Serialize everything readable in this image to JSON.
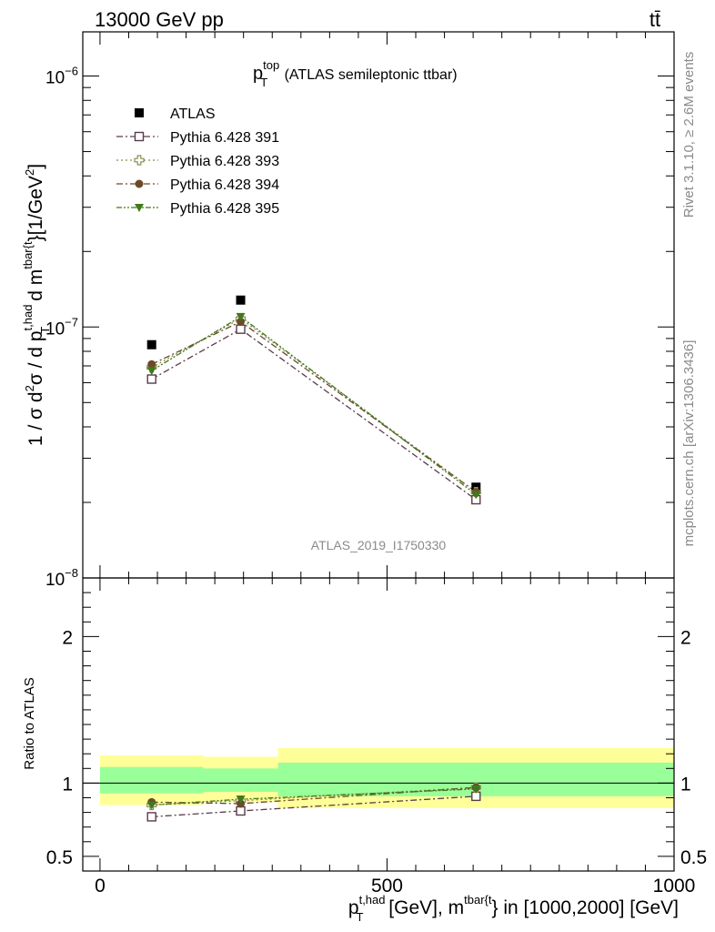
{
  "header": {
    "left_label": "13000 GeV pp",
    "right_label": "tt̄"
  },
  "side_labels": {
    "rivet": "Rivet 3.1.10, ≥ 2.6M events",
    "mcplots": "mcplots.cern.ch [arXiv:1306.3436]"
  },
  "chart_data": [
    {
      "type": "scatter",
      "panel": "main",
      "title": {
        "base": "p",
        "sup": "top",
        "sub": "T",
        "suffix": " (ATLAS semileptonic ttbar)"
      },
      "watermark": "ATLAS_2019_I1750330",
      "ylabel": "1 / σ d²σ / d p_T^{t,had} d m^{tbar{t}} [1/GeV²]",
      "yscale": "log",
      "ylim": [
        1e-08,
        1.5e-06
      ],
      "xlim": [
        -30,
        1000
      ],
      "ytick_labels": [
        {
          "value": 1e-08,
          "base": "10",
          "exp": "−8"
        },
        {
          "value": 1e-07,
          "base": "10",
          "exp": "−7"
        },
        {
          "value": 1e-06,
          "base": "10",
          "exp": "−6"
        }
      ],
      "legend_position": "top-left",
      "x": [
        90,
        245,
        655
      ],
      "series": [
        {
          "name": "ATLAS",
          "values": [
            8.5e-08,
            1.28e-07,
            2.3e-08
          ],
          "color": "#000000",
          "marker": "filled-square",
          "line": "none"
        },
        {
          "name": "Pythia 6.428 391",
          "values": [
            6.2e-08,
            9.8e-08,
            2.05e-08
          ],
          "color": "#5a3a4a",
          "marker": "open-square",
          "line": "dash-dot"
        },
        {
          "name": "Pythia 6.428 393",
          "values": [
            6.9e-08,
            1.08e-07,
            2.2e-08
          ],
          "color": "#8c8c50",
          "marker": "open-cross",
          "line": "dotted"
        },
        {
          "name": "Pythia 6.428 394",
          "values": [
            7.1e-08,
            1.05e-07,
            2.2e-08
          ],
          "color": "#6b4a2a",
          "marker": "filled-circle",
          "line": "dash-dot"
        },
        {
          "name": "Pythia 6.428 395",
          "values": [
            6.7e-08,
            1.1e-07,
            2.15e-08
          ],
          "color": "#3f7a1a",
          "marker": "filled-triangle-down",
          "line": "dash-dot-dot"
        }
      ]
    },
    {
      "type": "scatter",
      "panel": "ratio",
      "ylabel": "Ratio to ATLAS",
      "ylim": [
        0.4,
        2.4
      ],
      "xlim": [
        -30,
        1000
      ],
      "yticks": [
        0.5,
        1,
        2
      ],
      "ytick_labels": [
        "0.5",
        "1",
        "2"
      ],
      "xticks": [
        0,
        500,
        1000
      ],
      "xtick_labels": [
        "0",
        "500",
        "1000"
      ],
      "xlabel": {
        "p": "p",
        "p_sup": "t,had",
        "p_sub": "T",
        "mid": " [GeV], m",
        "m_sup": "tbar{t",
        "suffix": "} in [1000,2000] [GeV]"
      },
      "bands": [
        {
          "x0": 0,
          "x1": 180,
          "yellow": [
            0.85,
            1.19
          ],
          "green": [
            0.93,
            1.11
          ]
        },
        {
          "x0": 180,
          "x1": 310,
          "yellow": [
            0.87,
            1.18
          ],
          "green": [
            0.94,
            1.1
          ]
        },
        {
          "x0": 310,
          "x1": 1000,
          "yellow": [
            0.83,
            1.24
          ],
          "green": [
            0.91,
            1.14
          ]
        }
      ],
      "x": [
        90,
        245,
        655
      ],
      "series": [
        {
          "name": "Pythia 6.428 391",
          "values": [
            0.77,
            0.81,
            0.91
          ]
        },
        {
          "name": "Pythia 6.428 393",
          "values": [
            0.85,
            0.88,
            0.97
          ]
        },
        {
          "name": "Pythia 6.428 394",
          "values": [
            0.87,
            0.86,
            0.97
          ]
        },
        {
          "name": "Pythia 6.428 395",
          "values": [
            0.85,
            0.89,
            0.96
          ]
        }
      ]
    }
  ]
}
